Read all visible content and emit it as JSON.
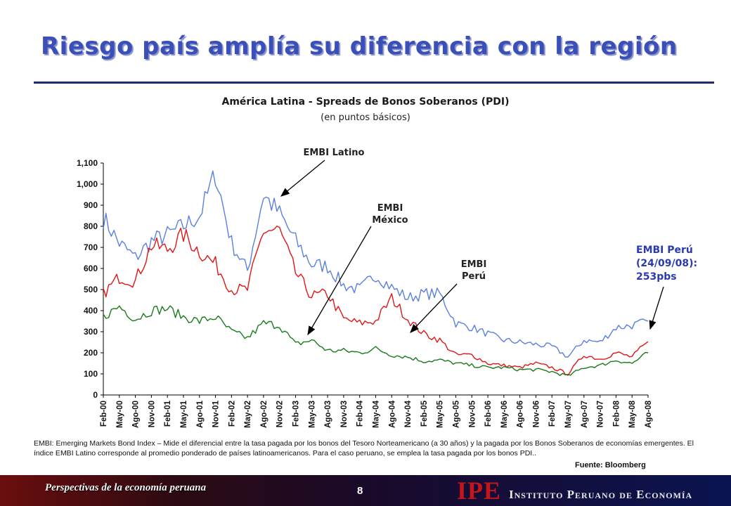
{
  "slide": {
    "title": "Riesgo país amplía su diferencia con la región",
    "page_number": "8",
    "footer_left": "Perspectivas de la economía peruana",
    "logo_text": "IPE",
    "institute_name": "Instituto Peruano de Economía"
  },
  "chart_data": {
    "type": "line",
    "title": "América Latina  - Spreads de Bonos Soberanos (PDI)",
    "subtitle": "(en puntos básicos)",
    "xlabel": "",
    "ylabel": "",
    "ylim": [
      0,
      1100
    ],
    "yticks": [
      0,
      100,
      200,
      300,
      400,
      500,
      600,
      700,
      800,
      900,
      1000,
      1100
    ],
    "ytick_labels": [
      "0",
      "100",
      "200",
      "300",
      "400",
      "500",
      "600",
      "700",
      "800",
      "900",
      "1,000",
      "1,100"
    ],
    "categories": [
      "Feb-00",
      "May-00",
      "Ago-00",
      "Nov-00",
      "Feb-01",
      "May-01",
      "Ago-01",
      "Nov-01",
      "Feb-02",
      "May-02",
      "Ago-02",
      "Nov-02",
      "Feb-03",
      "May-03",
      "Ago-03",
      "Nov-03",
      "Feb-04",
      "May-04",
      "Ago-04",
      "Nov-04",
      "Feb-05",
      "May-05",
      "Ago-05",
      "Nov-05",
      "Feb-06",
      "May-06",
      "Ago-06",
      "Nov-06",
      "Feb-07",
      "May-07",
      "Ago-07",
      "Nov-07",
      "Feb-08",
      "May-08",
      "Ago-08"
    ],
    "grid": false,
    "legend": "none",
    "series": [
      {
        "name": "EMBI Latino",
        "color": "#5a7fe0",
        "values": [
          840,
          720,
          650,
          730,
          760,
          800,
          850,
          1050,
          720,
          590,
          950,
          860,
          730,
          620,
          610,
          520,
          500,
          570,
          510,
          460,
          480,
          480,
          340,
          320,
          290,
          260,
          250,
          240,
          230,
          180,
          260,
          250,
          320,
          330,
          350
        ]
      },
      {
        "name": "EMBI Perú",
        "color": "#e01515",
        "values": [
          480,
          560,
          540,
          710,
          690,
          760,
          680,
          620,
          500,
          500,
          780,
          780,
          580,
          470,
          480,
          360,
          340,
          350,
          460,
          360,
          290,
          260,
          190,
          190,
          150,
          140,
          130,
          150,
          130,
          100,
          190,
          170,
          200,
          180,
          253
        ]
      },
      {
        "name": "EMBI México",
        "color": "#1a7a1a",
        "values": [
          370,
          420,
          360,
          400,
          410,
          370,
          350,
          370,
          300,
          270,
          340,
          330,
          240,
          260,
          210,
          210,
          200,
          220,
          190,
          180,
          160,
          165,
          150,
          140,
          130,
          130,
          120,
          120,
          110,
          90,
          130,
          140,
          165,
          150,
          200
        ]
      }
    ]
  },
  "annotations": {
    "latino": "EMBI Latino",
    "mexico": "EMBI\nMéxico",
    "peru": "EMBI\nPerú",
    "peru_note": "EMBI Perú\n(24/09/08):\n 253pbs"
  },
  "footnote": "EMBI: Emerging Markets Bond Index – Mide el diferencial entre la tasa pagada por los bonos del Tesoro Norteamericano  (a 30 años) y la pagada por los Bonos Soberanos de economías emergentes. El índice EMBI Latino corresponde al promedio ponderado  de países latinoamericanos. Para el caso peruano,  se emplea la tasa pagada por los bonos PDI..",
  "source": "Fuente: Bloomberg"
}
